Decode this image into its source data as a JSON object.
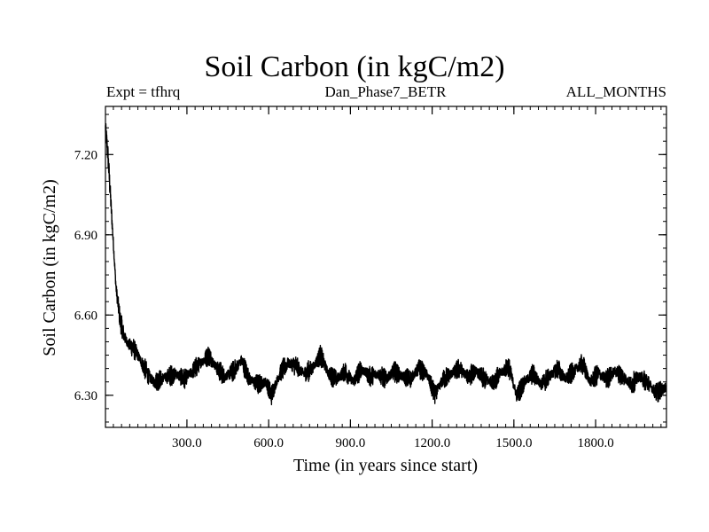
{
  "header": {
    "title": "Soil Carbon (in kgC/m2)",
    "left": "Expt = tfhrq",
    "center": "Dan_Phase7_BETR",
    "right": "ALL_MONTHS"
  },
  "chart_data": {
    "type": "line",
    "title": "Soil Carbon (in kgC/m2)",
    "xlabel": "Time (in years since start)",
    "ylabel": "Soil Carbon (in kgC/m2)",
    "xlim": [
      1,
      2060
    ],
    "ylim": [
      6.18,
      7.38
    ],
    "xticks": [
      300,
      600,
      900,
      1200,
      1500,
      1800
    ],
    "xtick_labels": [
      "300.0",
      "600.0",
      "900.0",
      "1200.0",
      "1500.0",
      "1800.0"
    ],
    "yticks": [
      6.3,
      6.6,
      6.9,
      7.2
    ],
    "ytick_labels": [
      "6.30",
      "6.60",
      "6.90",
      "7.20"
    ],
    "series": [
      {
        "name": "Soil Carbon",
        "x": [
          1,
          10,
          25,
          40,
          55,
          70,
          85,
          100,
          120,
          140,
          160,
          180,
          200,
          230,
          260,
          290,
          320,
          350,
          380,
          410,
          440,
          470,
          500,
          530,
          560,
          590,
          610,
          640,
          670,
          700,
          730,
          760,
          790,
          820,
          850,
          880,
          910,
          940,
          970,
          1000,
          1030,
          1060,
          1090,
          1120,
          1150,
          1180,
          1210,
          1240,
          1270,
          1300,
          1330,
          1360,
          1390,
          1420,
          1450,
          1480,
          1510,
          1540,
          1570,
          1600,
          1630,
          1660,
          1690,
          1720,
          1750,
          1780,
          1810,
          1840,
          1870,
          1900,
          1930,
          1960,
          1990,
          2020,
          2060
        ],
        "y": [
          7.3,
          7.2,
          6.95,
          6.7,
          6.58,
          6.52,
          6.49,
          6.48,
          6.45,
          6.41,
          6.37,
          6.35,
          6.36,
          6.37,
          6.38,
          6.36,
          6.39,
          6.42,
          6.45,
          6.4,
          6.37,
          6.39,
          6.43,
          6.36,
          6.34,
          6.35,
          6.3,
          6.38,
          6.42,
          6.41,
          6.38,
          6.4,
          6.45,
          6.38,
          6.36,
          6.39,
          6.35,
          6.4,
          6.37,
          6.38,
          6.36,
          6.39,
          6.37,
          6.36,
          6.4,
          6.38,
          6.3,
          6.36,
          6.38,
          6.4,
          6.37,
          6.39,
          6.36,
          6.35,
          6.38,
          6.41,
          6.3,
          6.35,
          6.38,
          6.34,
          6.37,
          6.4,
          6.36,
          6.39,
          6.42,
          6.35,
          6.38,
          6.36,
          6.39,
          6.37,
          6.34,
          6.37,
          6.35,
          6.31,
          6.33
        ]
      }
    ]
  },
  "style": {
    "line_color": "#000000",
    "background": "#ffffff"
  }
}
